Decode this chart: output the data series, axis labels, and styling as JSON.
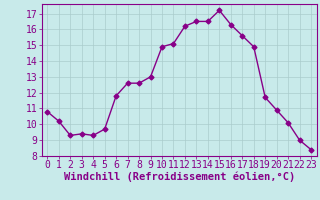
{
  "x": [
    0,
    1,
    2,
    3,
    4,
    5,
    6,
    7,
    8,
    9,
    10,
    11,
    12,
    13,
    14,
    15,
    16,
    17,
    18,
    19,
    20,
    21,
    22,
    23
  ],
  "y": [
    10.8,
    10.2,
    9.3,
    9.4,
    9.3,
    9.7,
    11.8,
    12.6,
    12.6,
    13.0,
    14.9,
    15.1,
    16.2,
    16.5,
    16.5,
    17.2,
    16.3,
    15.6,
    14.9,
    11.7,
    10.9,
    10.1,
    9.0,
    8.4
  ],
  "line_color": "#880088",
  "marker": "D",
  "marker_size": 2.5,
  "bg_color": "#c8eaea",
  "grid_color": "#aacccc",
  "xlabel": "Windchill (Refroidissement éolien,°C)",
  "ylim": [
    8,
    17.6
  ],
  "xlim": [
    -0.5,
    23.5
  ],
  "yticks": [
    8,
    9,
    10,
    11,
    12,
    13,
    14,
    15,
    16,
    17
  ],
  "xticks": [
    0,
    1,
    2,
    3,
    4,
    5,
    6,
    7,
    8,
    9,
    10,
    11,
    12,
    13,
    14,
    15,
    16,
    17,
    18,
    19,
    20,
    21,
    22,
    23
  ],
  "label_fontsize": 7.5,
  "tick_fontsize": 7.0
}
